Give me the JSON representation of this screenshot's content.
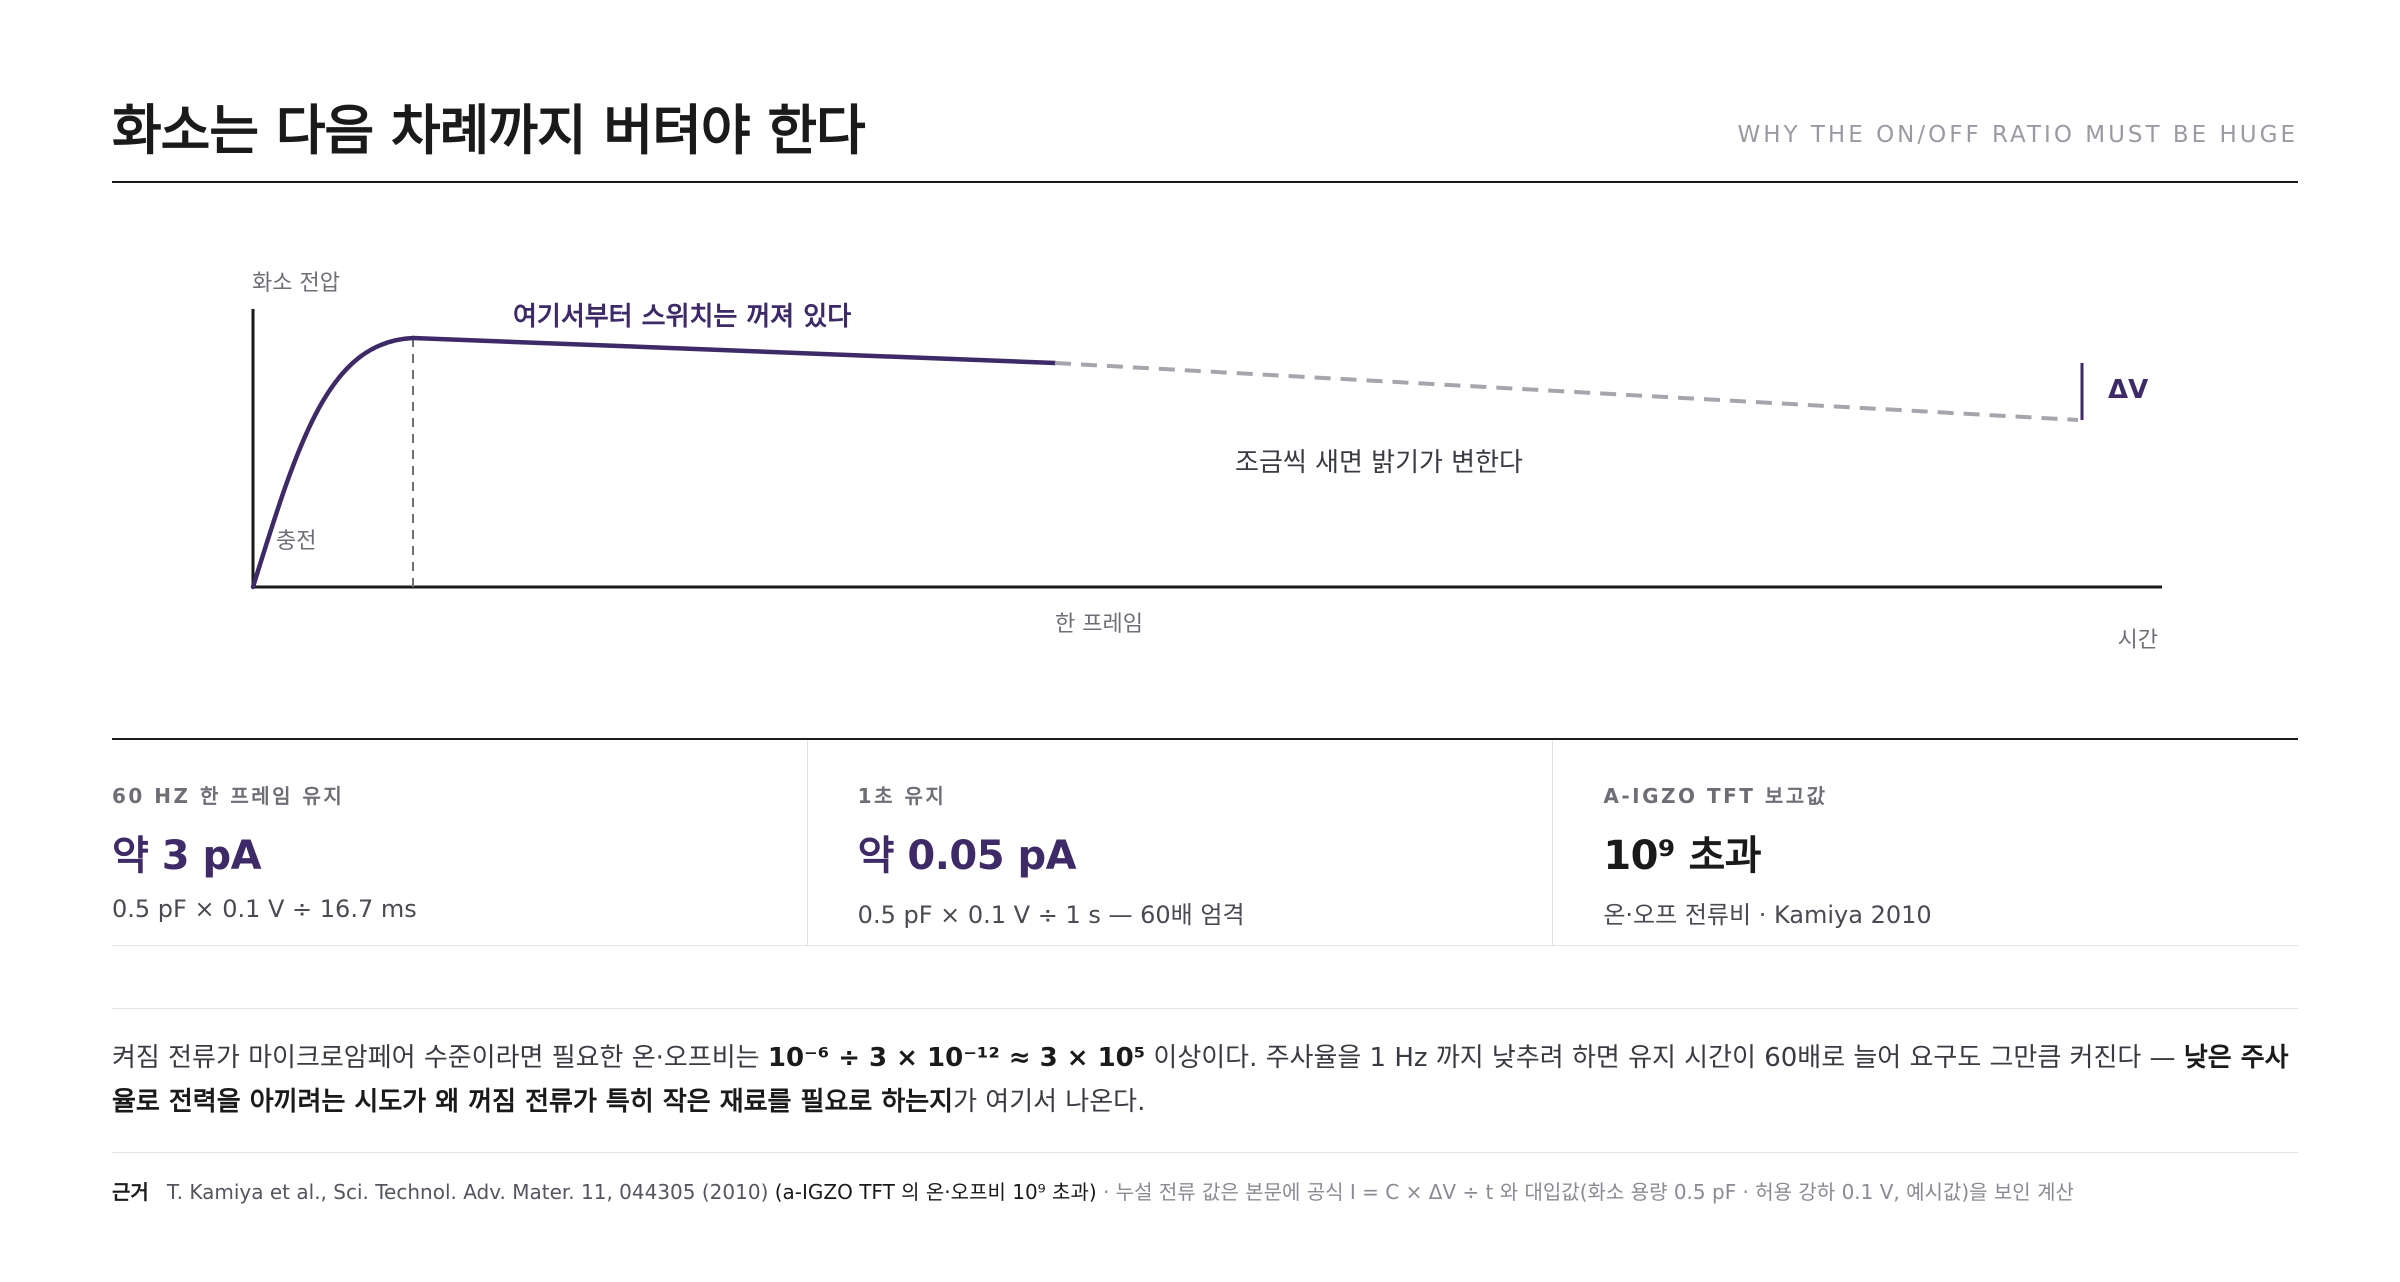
{
  "header": {
    "title": "화소는 다음 차례까지 버텨야 한다",
    "kicker": "WHY THE ON/OFF RATIO MUST BE HUGE"
  },
  "diagram": {
    "y_axis_label": "화소 전압",
    "charging_label": "충전",
    "switch_off_label": "여기서부터 스위치는 꺼져 있다",
    "drift_label": "조금씩 새면 밝기가 변한다",
    "delta_v_label": "ΔV",
    "frame_label": "한 프레임",
    "x_axis_label": "시간",
    "colors": {
      "accent": "#3d2a66",
      "leak": "#a5a5ad",
      "axis": "#1a1a1a"
    }
  },
  "stats": [
    {
      "label": "60 HZ 한 프레임 유지",
      "value": "약 3 pA",
      "note": "0.5 pF × 0.1 V ÷ 16.7 ms",
      "tone": "accent"
    },
    {
      "label": "1초 유지",
      "value": "약 0.05 pA",
      "note": "0.5 pF × 0.1 V ÷ 1 s — 60배 엄격",
      "tone": "accent"
    },
    {
      "label": "A-IGZO TFT 보고값",
      "value": "10⁹ 초과",
      "note": "온·오프 전류비 · Kamiya 2010",
      "tone": "dark"
    }
  ],
  "paragraph": {
    "part1": "켜짐 전류가 마이크로암페어 수준이라면 필요한 온·오프비는 ",
    "formula": "10⁻⁶ ÷ 3 × 10⁻¹² ≈ 3 × 10⁵",
    "part2": " 이상이다. 주사율을 1 Hz 까지 낮추려 하면 유지 시간이 60배로 늘어 요구도 그만큼 커진다 — ",
    "emphasis": "낮은 주사율로 전력을 아끼려는 시도가 왜 꺼짐 전류가 특히 작은 재료를 필요로 하는지",
    "part3": "가 여기서 나온다."
  },
  "source": {
    "tag": "근거",
    "reference": "T. Kamiya et al., Sci. Technol. Adv. Mater. 11, 044305 (2010)",
    "highlight": "(a-IGZO TFT 의 온·오프비 10⁹ 초과)",
    "note": "· 누설 전류 값은 본문에 공식 I = C × ΔV ÷ t 와 대입값(화소 용량 0.5 pF · 허용 강하 0.1 V, 예시값)을 보인 계산"
  }
}
